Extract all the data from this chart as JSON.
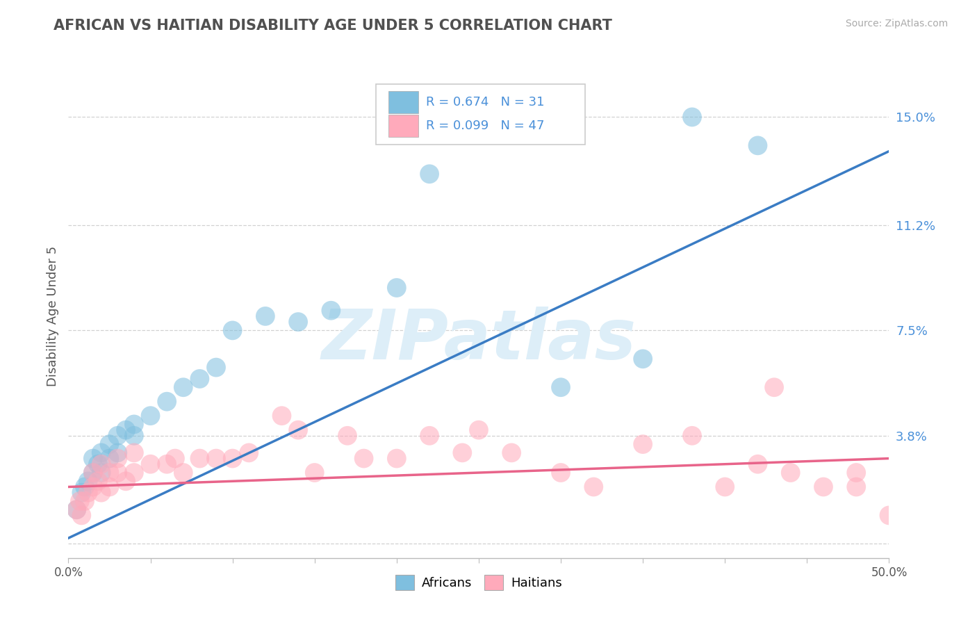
{
  "title": "AFRICAN VS HAITIAN DISABILITY AGE UNDER 5 CORRELATION CHART",
  "source": "Source: ZipAtlas.com",
  "ylabel": "Disability Age Under 5",
  "xlim": [
    0.0,
    0.5
  ],
  "ylim": [
    -0.005,
    0.165
  ],
  "xticks": [
    0.0,
    0.05,
    0.1,
    0.15,
    0.2,
    0.25,
    0.3,
    0.35,
    0.4,
    0.45,
    0.5
  ],
  "yticks": [
    0.0,
    0.038,
    0.075,
    0.112,
    0.15
  ],
  "ytick_labels": [
    "",
    "3.8%",
    "7.5%",
    "11.2%",
    "15.0%"
  ],
  "xtick_labels": [
    "0.0%",
    "",
    "",
    "",
    "",
    "",
    "",
    "",
    "",
    "",
    "50.0%"
  ],
  "african_color": "#7fbfdf",
  "haitian_color": "#ffaabb",
  "african_line_color": "#3a7cc4",
  "haitian_line_color": "#e8648a",
  "african_R": 0.674,
  "african_N": 31,
  "haitian_R": 0.099,
  "haitian_N": 47,
  "watermark": "ZIPatlas",
  "watermark_color": "#ddeef8",
  "background_color": "#ffffff",
  "grid_color": "#cccccc",
  "title_color": "#505050",
  "label_color": "#4a90d9",
  "african_x": [
    0.005,
    0.008,
    0.01,
    0.012,
    0.015,
    0.015,
    0.018,
    0.02,
    0.02,
    0.025,
    0.025,
    0.03,
    0.03,
    0.035,
    0.04,
    0.04,
    0.05,
    0.06,
    0.07,
    0.08,
    0.09,
    0.1,
    0.12,
    0.14,
    0.16,
    0.2,
    0.22,
    0.3,
    0.35,
    0.38,
    0.42
  ],
  "african_y": [
    0.012,
    0.018,
    0.02,
    0.022,
    0.025,
    0.03,
    0.028,
    0.025,
    0.032,
    0.03,
    0.035,
    0.032,
    0.038,
    0.04,
    0.038,
    0.042,
    0.045,
    0.05,
    0.055,
    0.058,
    0.062,
    0.075,
    0.08,
    0.078,
    0.082,
    0.09,
    0.13,
    0.055,
    0.065,
    0.15,
    0.14
  ],
  "haitian_x": [
    0.005,
    0.007,
    0.008,
    0.01,
    0.012,
    0.015,
    0.015,
    0.018,
    0.02,
    0.02,
    0.025,
    0.025,
    0.03,
    0.03,
    0.035,
    0.04,
    0.04,
    0.05,
    0.06,
    0.065,
    0.07,
    0.08,
    0.09,
    0.1,
    0.11,
    0.13,
    0.14,
    0.15,
    0.17,
    0.18,
    0.2,
    0.22,
    0.24,
    0.25,
    0.27,
    0.3,
    0.32,
    0.35,
    0.38,
    0.4,
    0.42,
    0.43,
    0.44,
    0.46,
    0.48,
    0.48,
    0.5
  ],
  "haitian_y": [
    0.012,
    0.015,
    0.01,
    0.015,
    0.018,
    0.02,
    0.025,
    0.022,
    0.018,
    0.028,
    0.02,
    0.025,
    0.025,
    0.03,
    0.022,
    0.025,
    0.032,
    0.028,
    0.028,
    0.03,
    0.025,
    0.03,
    0.03,
    0.03,
    0.032,
    0.045,
    0.04,
    0.025,
    0.038,
    0.03,
    0.03,
    0.038,
    0.032,
    0.04,
    0.032,
    0.025,
    0.02,
    0.035,
    0.038,
    0.02,
    0.028,
    0.055,
    0.025,
    0.02,
    0.02,
    0.025,
    0.01
  ],
  "african_line_x0": 0.0,
  "african_line_y0": 0.002,
  "african_line_x1": 0.5,
  "african_line_y1": 0.138,
  "haitian_line_x0": 0.0,
  "haitian_line_y0": 0.02,
  "haitian_line_x1": 0.5,
  "haitian_line_y1": 0.03
}
